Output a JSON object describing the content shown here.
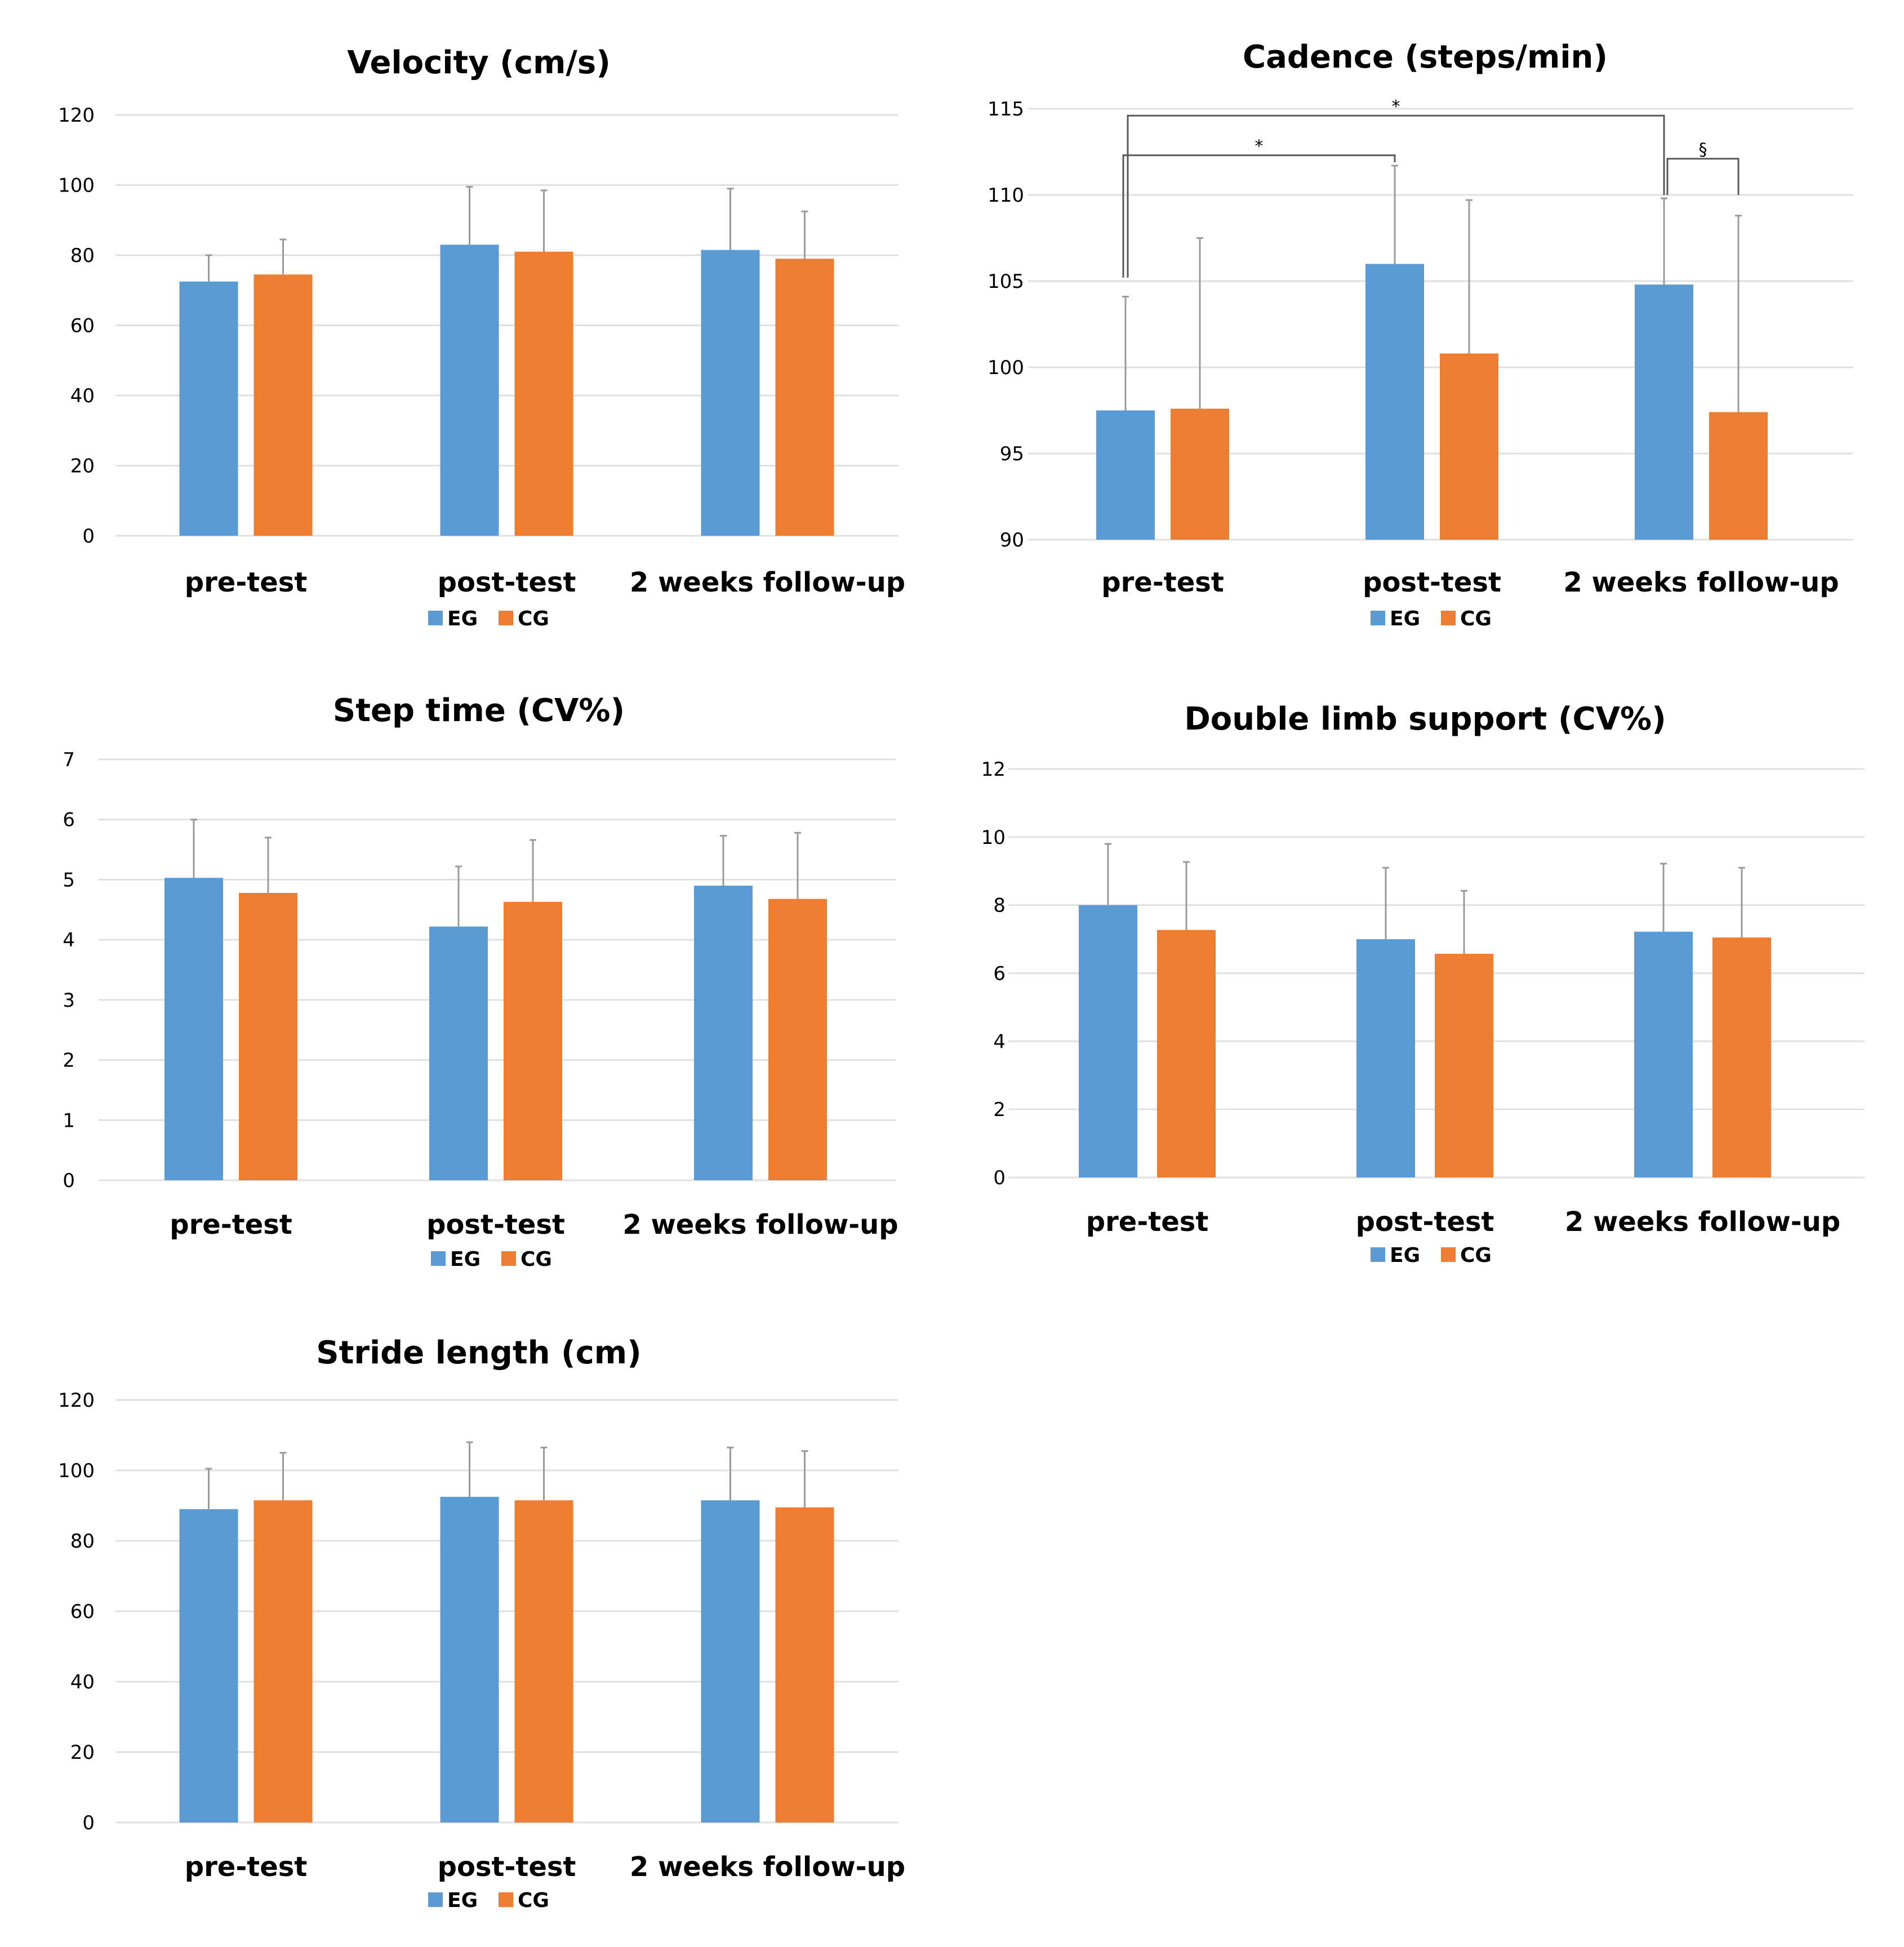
{
  "colors": {
    "EG": "#5b9bd5",
    "CG": "#ed7d31"
  },
  "chart_data": [
    {
      "type": "bar",
      "title": "Velocity (cm/s)",
      "categories": [
        "pre-test",
        "post-test",
        "2 weeks follow-up"
      ],
      "ylim": [
        0,
        120
      ],
      "yticks": [
        "0",
        "20",
        "40",
        "60",
        "80",
        "100",
        "120"
      ],
      "series": [
        {
          "name": "EG",
          "values": [
            72.5,
            83,
            81.5
          ],
          "errors": [
            7.5,
            16.5,
            17.5
          ]
        },
        {
          "name": "CG",
          "values": [
            74.5,
            81,
            79
          ],
          "errors": [
            10,
            17.5,
            13.5
          ]
        }
      ],
      "legend": [
        "EG",
        "CG"
      ],
      "legend_position": "bottom"
    },
    {
      "type": "bar",
      "title": "Cadence (steps/min)",
      "categories": [
        "pre-test",
        "post-test",
        "2 weeks follow-up"
      ],
      "ylim": [
        90,
        115
      ],
      "yticks": [
        "90",
        "95",
        "100",
        "105",
        "110",
        "115"
      ],
      "series": [
        {
          "name": "EG",
          "values": [
            97.5,
            106,
            104.8
          ],
          "errors": [
            6.6,
            5.7,
            5
          ]
        },
        {
          "name": "CG",
          "values": [
            97.6,
            100.8,
            97.4
          ],
          "errors": [
            9.9,
            8.9,
            11.4
          ]
        }
      ],
      "legend": [
        "EG",
        "CG"
      ],
      "legend_position": "bottom",
      "annotations": [
        {
          "from": 0,
          "to": 1,
          "label": "*"
        },
        {
          "from": 0,
          "to": 2,
          "label": "*"
        },
        {
          "from": 2,
          "to": 2,
          "label": "§"
        }
      ]
    },
    {
      "type": "bar",
      "title": "Step time (CV%)",
      "categories": [
        "pre-test",
        "post-test",
        "2 weeks follow-up"
      ],
      "ylim": [
        0,
        7
      ],
      "yticks": [
        "0",
        "1",
        "2",
        "3",
        "4",
        "5",
        "6",
        "7"
      ],
      "series": [
        {
          "name": "EG",
          "values": [
            5.03,
            4.22,
            4.9
          ],
          "errors": [
            0.97,
            1,
            0.83
          ]
        },
        {
          "name": "CG",
          "values": [
            4.78,
            4.63,
            4.68
          ],
          "errors": [
            0.92,
            1.03,
            1.1
          ]
        }
      ],
      "legend": [
        "EG",
        "CG"
      ],
      "legend_position": "bottom"
    },
    {
      "type": "bar",
      "title": "Double limb support (CV%)",
      "categories": [
        "pre-test",
        "post-test",
        "2 weeks follow-up"
      ],
      "ylim": [
        0,
        12
      ],
      "yticks": [
        "0",
        "2",
        "4",
        "6",
        "8",
        "10",
        "12"
      ],
      "series": [
        {
          "name": "EG",
          "values": [
            8,
            7,
            7.22
          ],
          "errors": [
            1.8,
            2.1,
            2
          ]
        },
        {
          "name": "CG",
          "values": [
            7.27,
            6.57,
            7.05
          ],
          "errors": [
            2,
            1.85,
            2.05
          ]
        }
      ],
      "legend": [
        "EG",
        "CG"
      ],
      "legend_position": "bottom"
    },
    {
      "type": "bar",
      "title": "Stride length (cm)",
      "categories": [
        "pre-test",
        "post-test",
        "2 weeks follow-up"
      ],
      "ylim": [
        0,
        120
      ],
      "yticks": [
        "0",
        "20",
        "40",
        "60",
        "80",
        "100",
        "120"
      ],
      "series": [
        {
          "name": "EG",
          "values": [
            89,
            92.5,
            91.5
          ],
          "errors": [
            11.5,
            15.5,
            15
          ]
        },
        {
          "name": "CG",
          "values": [
            91.5,
            91.5,
            89.5
          ],
          "errors": [
            13.5,
            15,
            16
          ]
        }
      ],
      "legend": [
        "EG",
        "CG"
      ],
      "legend_position": "bottom"
    }
  ]
}
